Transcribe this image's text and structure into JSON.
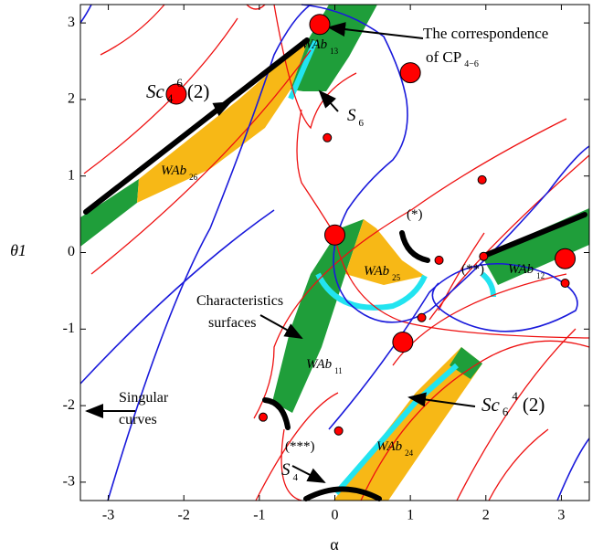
{
  "chart_data": {
    "type": "scatter",
    "x_label": "α",
    "y_label": "θ1",
    "xlim": [
      -3.37,
      3.37
    ],
    "ylim": [
      -3.24,
      3.24
    ],
    "xticks": [
      -3,
      -2,
      -1,
      0,
      1,
      2,
      3
    ],
    "yticks": [
      -3,
      -2,
      -1,
      0,
      1,
      2,
      3
    ],
    "series": [
      {
        "color": "#ff0000",
        "x": [
          -0.2,
          1.0,
          -2.1,
          0.0,
          0.9,
          3.05
        ],
        "values": [
          2.98,
          2.35,
          2.07,
          0.23,
          -1.17,
          -0.08
        ]
      },
      {
        "color": "#ff0000",
        "x": [
          -0.1,
          1.38,
          1.95,
          1.97,
          3.05,
          1.15,
          -0.95,
          0.05
        ],
        "values": [
          1.5,
          -0.1,
          0.95,
          -0.05,
          -0.4,
          -0.85,
          -2.15,
          -2.33
        ]
      }
    ],
    "annotations": [
      {
        "text": "Sc",
        "sub": "4",
        "sup": "6",
        "tail": "(2)"
      },
      {
        "text": "The correspondence"
      },
      {
        "text": "of CP",
        "sub": "4−6"
      },
      {
        "text": "WAb",
        "sub": "13"
      },
      {
        "text": "S",
        "sub": "6"
      },
      {
        "text": "WAb",
        "sub": "26"
      },
      {
        "text": "(*)"
      },
      {
        "text": "(**)"
      },
      {
        "text": "WAb",
        "sub": "25"
      },
      {
        "text": "WAb",
        "sub": "12"
      },
      {
        "text": "Characteristics"
      },
      {
        "text": "surfaces"
      },
      {
        "text": "WAb",
        "sub": "11"
      },
      {
        "text": "Sc",
        "sub": "6",
        "sup": "4",
        "tail": "(2)"
      },
      {
        "text": "Singular"
      },
      {
        "text": "curves"
      },
      {
        "text": "(***)"
      },
      {
        "text": "WAb",
        "sub": "24"
      },
      {
        "text": "S",
        "sub": "4"
      }
    ]
  }
}
